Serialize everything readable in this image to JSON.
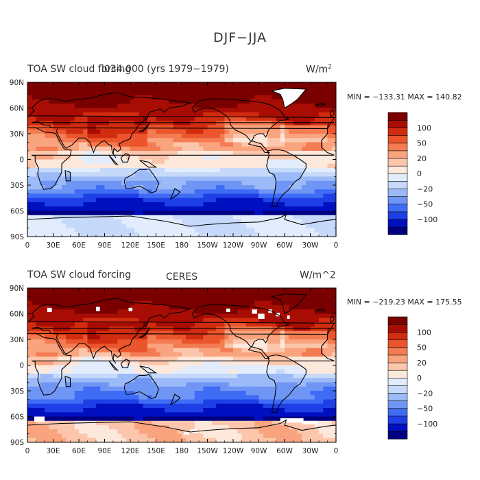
{
  "title": "DJF−JJA",
  "colors": [
    "#000080",
    "#0010c0",
    "#1f3fe6",
    "#3f6cf5",
    "#6f95f5",
    "#9bbaf7",
    "#c6d9fa",
    "#e2ecfc",
    "#fde8dc",
    "#fcc6ac",
    "#f9a47e",
    "#f47c52",
    "#eb552c",
    "#d22c10",
    "#a80d04",
    "#7a0000"
  ],
  "colorbar": {
    "labels": [
      "100",
      "50",
      "20",
      "0",
      "−20",
      "−50",
      "−100"
    ]
  },
  "x_ticks": [
    "0",
    "30E",
    "60E",
    "90E",
    "120E",
    "150E",
    "180",
    "150W",
    "120W",
    "90W",
    "60W",
    "30W",
    "0"
  ],
  "y_ticks": [
    "90N",
    "60N",
    "30N",
    "0",
    "30S",
    "60S",
    "90S"
  ],
  "panels": [
    {
      "left_title": "TOA SW cloud forcing",
      "center_title": "fl034.000 (yrs 1979−1979)",
      "units_base": "W/m",
      "units_sup": "2",
      "minmax": "MIN = −133.31  MAX = 140.82"
    },
    {
      "left_title": "TOA SW cloud forcing",
      "center_title": "CERES",
      "units_base": "W/m^2",
      "units_sup": "",
      "minmax": "MIN = −219.23  MAX = 175.55"
    }
  ]
}
